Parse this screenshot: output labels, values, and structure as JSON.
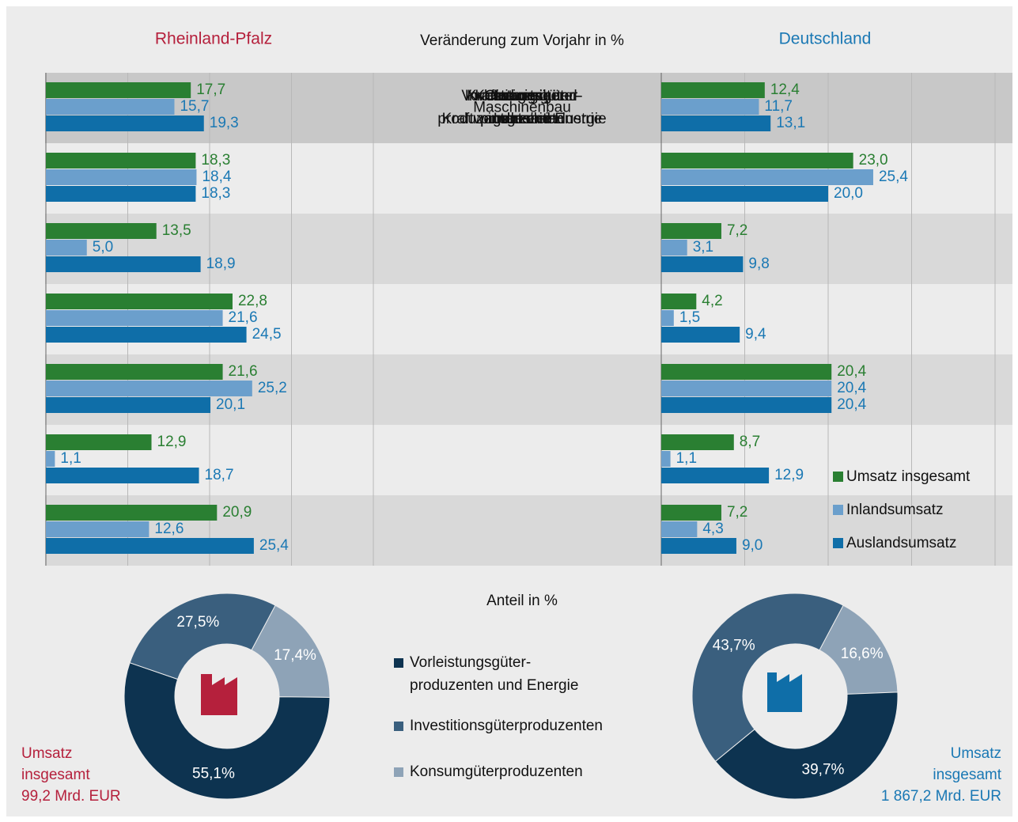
{
  "chart_data": [
    {
      "type": "hbar",
      "title": "Rheinland-Pfalz",
      "subtitle": "Veränderung zum Vorjahr in %",
      "categories": [
        [
          "Industrie",
          "insgesamt"
        ],
        [
          "Vorleistungsgüter-",
          "produzenten und Energie"
        ],
        [
          "Investitionsgüter-",
          "produzenten"
        ],
        [
          "Konsumgüter-",
          "produzenten"
        ],
        [
          "Chemische",
          "Industrie"
        ],
        [
          "Kraftwagen- und",
          "Kraftwagenteileindustrie"
        ],
        [
          "Maschinenbau"
        ]
      ],
      "series": [
        {
          "color": "#2a7f32",
          "values": [
            17.7,
            18.3,
            13.5,
            22.8,
            21.6,
            12.9,
            20.9
          ],
          "value_labels": [
            "17,7",
            "18,3",
            "13,5",
            "22,8",
            "21,6",
            "12,9",
            "20,9"
          ]
        },
        {
          "color": "#6b9fcc",
          "values": [
            15.7,
            18.4,
            5.0,
            21.6,
            25.2,
            1.1,
            12.6
          ],
          "value_labels": [
            "15,7",
            "18,4",
            "5,0",
            "21,6",
            "25,2",
            "1,1",
            "12,6"
          ]
        },
        {
          "color": "#0f6ea8",
          "values": [
            19.3,
            18.3,
            18.9,
            24.5,
            20.1,
            18.7,
            25.4
          ],
          "value_labels": [
            "19,3",
            "18,3",
            "18,9",
            "24,5",
            "20,1",
            "18,7",
            "25,4"
          ]
        }
      ],
      "xlim": [
        0,
        40
      ],
      "xticks": [
        0,
        10,
        20,
        30,
        40
      ],
      "grid": true
    },
    {
      "type": "hbar",
      "title": "Deutschland",
      "series": [
        {
          "name": "Umsatz insgesamt",
          "color": "#2a7f32",
          "values": [
            12.4,
            23.0,
            7.2,
            4.2,
            20.4,
            8.7,
            7.2
          ],
          "value_labels": [
            "12,4",
            "23,0",
            "7,2",
            "4,2",
            "20,4",
            "8,7",
            "7,2"
          ]
        },
        {
          "name": "Inlandsumsatz",
          "color": "#6b9fcc",
          "values": [
            11.7,
            25.4,
            3.1,
            1.5,
            20.4,
            1.1,
            4.3
          ],
          "value_labels": [
            "11,7",
            "25,4",
            "3,1",
            "1,5",
            "20,4",
            "1,1",
            "4,3"
          ]
        },
        {
          "name": "Auslandsumsatz",
          "color": "#0f6ea8",
          "values": [
            13.1,
            20.0,
            9.8,
            9.4,
            20.4,
            12.9,
            9.0
          ],
          "value_labels": [
            "13,1",
            "20,0",
            "9,8",
            "9,4",
            "20,4",
            "12,9",
            "9,0"
          ]
        }
      ],
      "xlim": [
        0,
        40
      ],
      "xticks": [
        0,
        10,
        20,
        30,
        40
      ],
      "grid": true,
      "legend": "right"
    },
    {
      "type": "donut",
      "subtitle": "Anteil in %",
      "categories": [
        [
          "Vorleistungsgüter-",
          "produzenten und Energie"
        ],
        [
          "Investitionsgüterproduzenten"
        ],
        [
          "Konsumgüterproduzenten"
        ]
      ],
      "colors": [
        "#0d3350",
        "#3a5f7e",
        "#8ea3b7"
      ],
      "values": [
        55.1,
        27.5,
        17.4
      ],
      "value_labels": [
        "55,1%",
        "27,5%",
        "17,4%"
      ],
      "annotation": [
        "Umsatz",
        "insgesamt",
        "99,2 Mrd. EUR"
      ]
    },
    {
      "type": "donut",
      "colors": [
        "#0d3350",
        "#3a5f7e",
        "#8ea3b7"
      ],
      "values": [
        39.7,
        43.7,
        16.6
      ],
      "value_labels": [
        "39,7%",
        "43,7%",
        "16,6%"
      ],
      "annotation": [
        "Umsatz",
        "insgesamt",
        "1 867,2 Mrd. EUR"
      ]
    }
  ]
}
